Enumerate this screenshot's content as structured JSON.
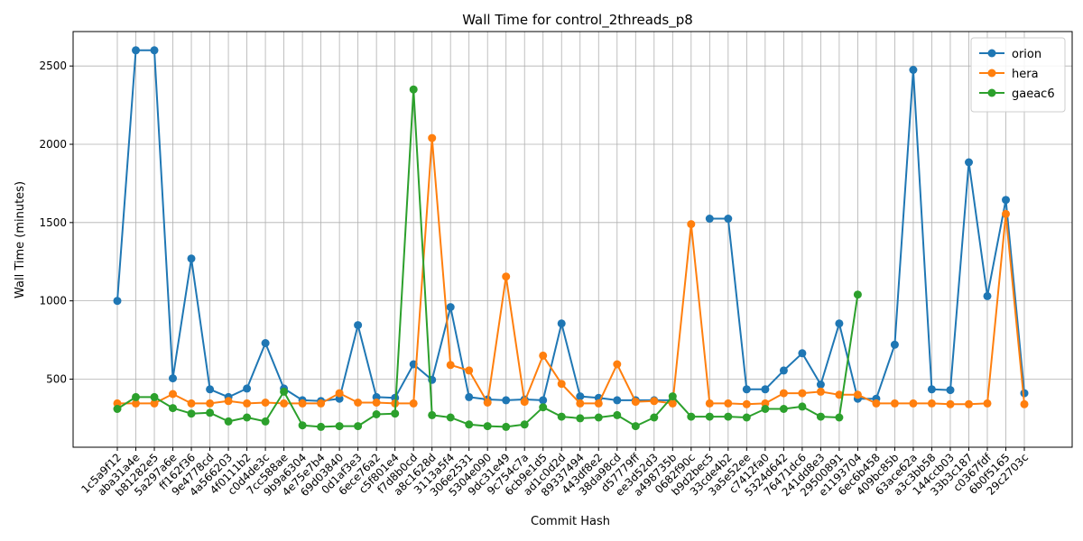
{
  "chart_data": {
    "type": "line",
    "title": "Wall Time for control_2threads_p8",
    "xlabel": "Commit Hash",
    "ylabel": "Wall Time (minutes)",
    "ylim": [
      65,
      2720
    ],
    "yticks": [
      500,
      1000,
      1500,
      2000,
      2500
    ],
    "grid": true,
    "legend_position": "top-right",
    "categories": [
      "1c5a9f12",
      "aba31a4e",
      "b81282e5",
      "5a297a6e",
      "ff162f36",
      "9e4778cd",
      "4a566203",
      "4f0111b2",
      "c0d4de3c",
      "7cc588ae",
      "9b9a6304",
      "4e75e7b4",
      "69d03840",
      "0d1af3e3",
      "6ece76a2",
      "c5f801e4",
      "f7d8b0cd",
      "a8c1628d",
      "3113a5f4",
      "306e2531",
      "5304e090",
      "9dc31e49",
      "9c754c7a",
      "6cb9e1d5",
      "ad1c0d2d",
      "89337494",
      "443df8e2",
      "38da98cd",
      "d57779ff",
      "ee3d52d3",
      "a498735b",
      "0682f90c",
      "b9d2bec5",
      "33cde4b2",
      "3a5e52ee",
      "c7412fa0",
      "5324d642",
      "76471dc6",
      "241dd8e3",
      "29500891",
      "e1193704",
      "6ec6b458",
      "409bc85b",
      "63ace62a",
      "a3c3bb58",
      "144ccb03",
      "33b3c187",
      "c0367fdf",
      "6b0f5165",
      "29c2703c"
    ],
    "series": [
      {
        "name": "orion",
        "color": "#1f77b4",
        "values": [
          1000,
          2600,
          2600,
          505,
          1270,
          435,
          385,
          440,
          730,
          440,
          365,
          360,
          375,
          845,
          385,
          380,
          595,
          495,
          960,
          385,
          370,
          365,
          370,
          365,
          855,
          390,
          380,
          365,
          365,
          365,
          365,
          null,
          1525,
          1525,
          435,
          435,
          555,
          665,
          465,
          855,
          375,
          375,
          720,
          2475,
          435,
          430,
          1885,
          1030,
          1645,
          410
        ]
      },
      {
        "name": "hera",
        "color": "#ff7f0e",
        "values": [
          345,
          345,
          345,
          405,
          345,
          345,
          360,
          345,
          350,
          345,
          345,
          345,
          410,
          350,
          350,
          345,
          345,
          2040,
          590,
          555,
          350,
          1155,
          355,
          650,
          470,
          345,
          345,
          595,
          355,
          360,
          345,
          1490,
          345,
          345,
          340,
          345,
          410,
          410,
          420,
          400,
          400,
          345,
          345,
          345,
          345,
          340,
          340,
          345,
          1555,
          340
        ]
      },
      {
        "name": "gaeac6",
        "color": "#2ca02c",
        "values": [
          310,
          385,
          385,
          315,
          280,
          285,
          230,
          255,
          230,
          420,
          205,
          195,
          200,
          200,
          275,
          280,
          2350,
          270,
          255,
          210,
          200,
          195,
          210,
          320,
          260,
          250,
          255,
          270,
          200,
          255,
          390,
          260,
          260,
          260,
          255,
          310,
          310,
          325,
          260,
          255,
          1040,
          null,
          null,
          null,
          null,
          null,
          null,
          null,
          null,
          null
        ]
      }
    ]
  }
}
